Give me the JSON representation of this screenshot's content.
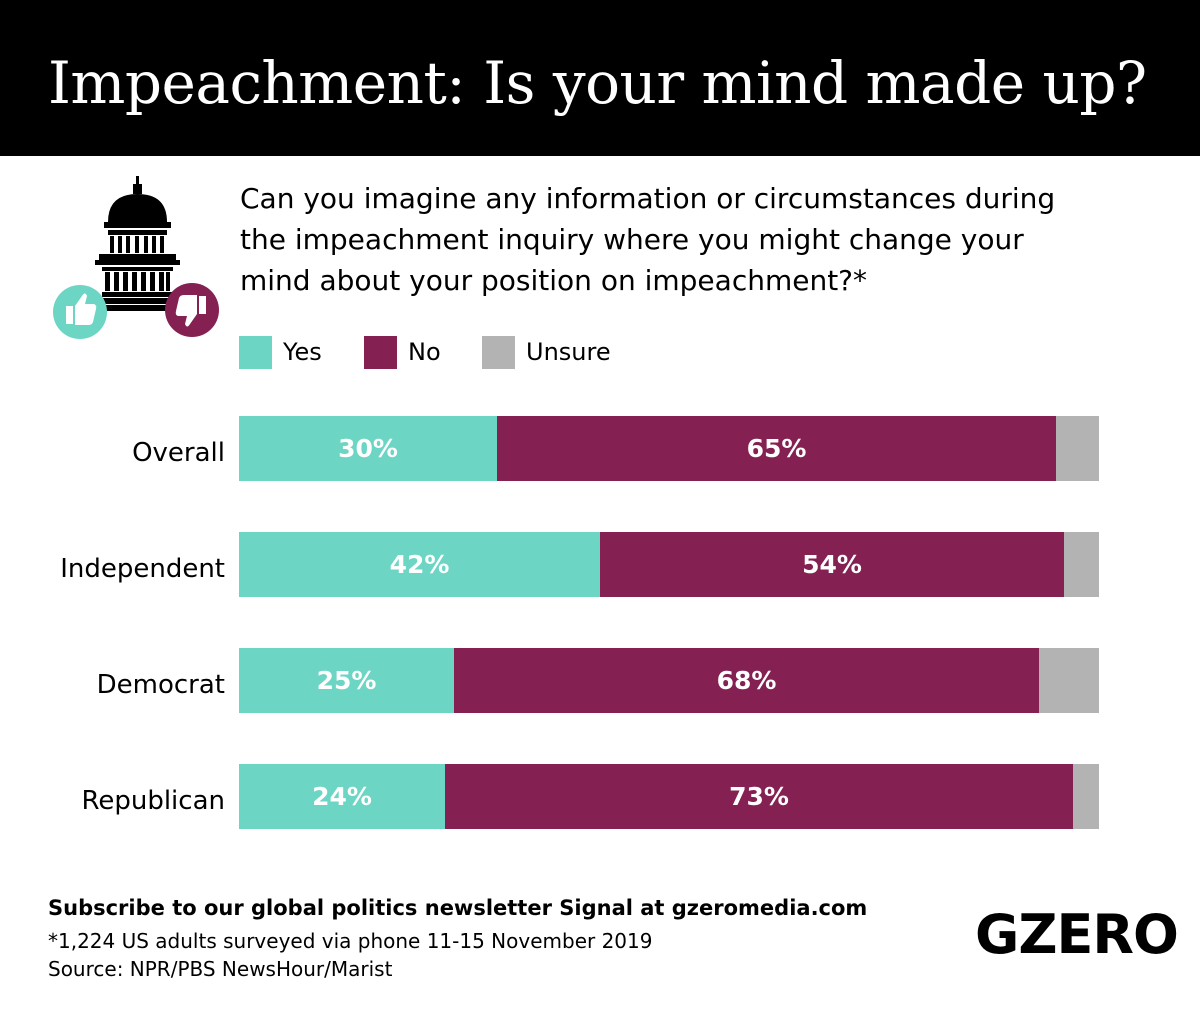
{
  "title": "Impeachment: Is your mind made up?",
  "question_lines": [
    "Can you imagine any information or circumstances during",
    "the impeachment inquiry where you might change your",
    "mind about your position on impeachment?*"
  ],
  "colors": {
    "yes": "#6dd5c4",
    "no": "#852052",
    "unsure": "#b3b3b3"
  },
  "legend": [
    {
      "label": "Yes",
      "color": "#6dd5c4"
    },
    {
      "label": "No",
      "color": "#852052"
    },
    {
      "label": "Unsure",
      "color": "#b3b3b3"
    }
  ],
  "chart_data": {
    "type": "bar",
    "orientation": "horizontal",
    "stacked": true,
    "categories": [
      "Overall",
      "Independent",
      "Democrat",
      "Republican"
    ],
    "series": [
      {
        "name": "Yes",
        "values": [
          30,
          42,
          25,
          24
        ],
        "labels": [
          "30%",
          "42%",
          "25%",
          "24%"
        ]
      },
      {
        "name": "No",
        "values": [
          65,
          54,
          68,
          73
        ],
        "labels": [
          "65%",
          "54%",
          "68%",
          "73%"
        ]
      },
      {
        "name": "Unsure",
        "values": [
          5,
          4,
          7,
          3
        ]
      }
    ],
    "xlim": [
      0,
      100
    ],
    "legend_position": "top",
    "grid": false
  },
  "footer": {
    "subscribe": "Subscribe to our global politics newsletter Signal at gzeromedia.com",
    "note": "*1,224 US adults surveyed via phone 11-15 November 2019",
    "source": "Source: NPR/PBS NewsHour/Marist"
  },
  "brand": "GZERO",
  "icon": "capitol-thumbs-icon"
}
